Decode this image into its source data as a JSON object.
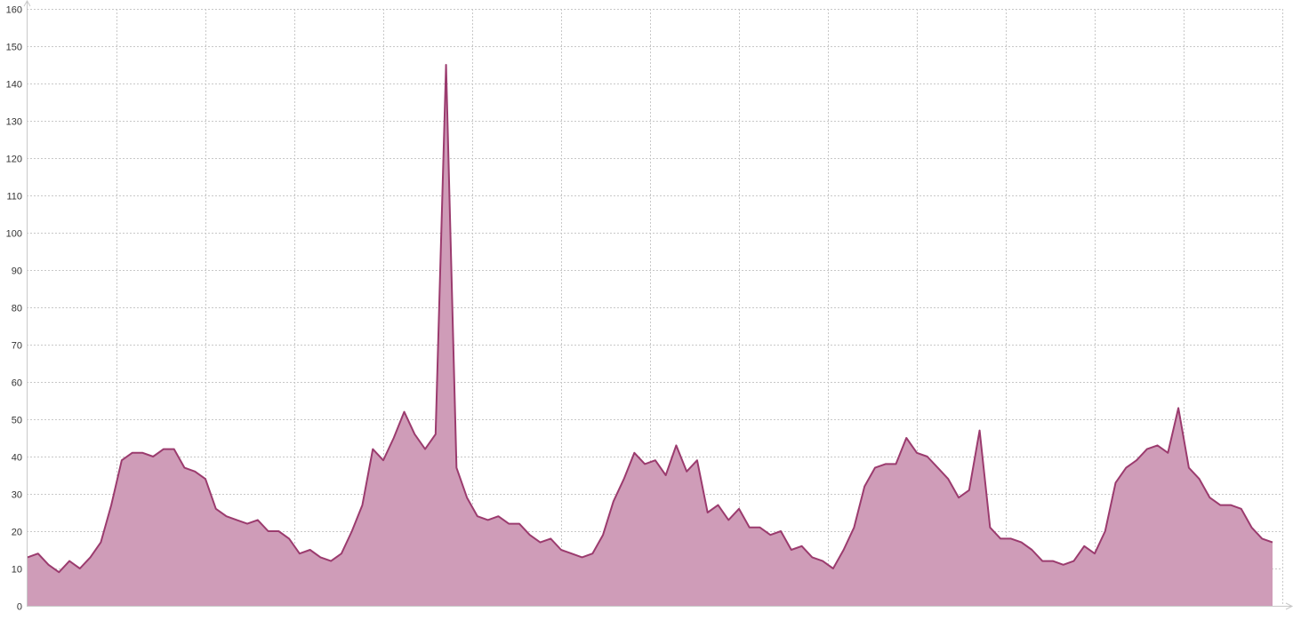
{
  "chart_data": {
    "type": "area",
    "title": "",
    "xlabel": "",
    "ylabel": "",
    "ylim": [
      0,
      160
    ],
    "yticks": [
      0,
      10,
      20,
      30,
      40,
      50,
      60,
      70,
      80,
      90,
      100,
      110,
      120,
      130,
      140,
      150,
      160
    ],
    "ytick_labels": [
      "0",
      "10",
      "20",
      "30",
      "40",
      "50",
      "60",
      "70",
      "80",
      "90",
      "100",
      "110",
      "120",
      "130",
      "140",
      "150",
      "160"
    ],
    "grid": true,
    "legend": "none",
    "colors": {
      "line": "#9b3b6e",
      "fill": "#cf9cb8"
    },
    "x_count": 120,
    "vertical_grid_every": 8.5,
    "values": [
      13,
      14,
      11,
      9,
      12,
      10,
      13,
      17,
      27,
      39,
      41,
      41,
      40,
      42,
      42,
      37,
      36,
      34,
      26,
      24,
      23,
      22,
      23,
      20,
      20,
      18,
      14,
      15,
      13,
      12,
      14,
      20,
      27,
      42,
      39,
      45,
      52,
      46,
      42,
      46,
      145,
      37,
      29,
      24,
      23,
      24,
      22,
      22,
      19,
      17,
      18,
      15,
      14,
      13,
      14,
      19,
      28,
      34,
      41,
      38,
      39,
      35,
      43,
      36,
      39,
      25,
      27,
      23,
      26,
      21,
      21,
      19,
      20,
      15,
      16,
      13,
      12,
      10,
      15,
      21,
      32,
      37,
      38,
      38,
      45,
      41,
      40,
      37,
      34,
      29,
      31,
      47,
      21,
      18,
      18,
      17,
      15,
      12,
      12,
      11,
      12,
      16,
      14,
      20,
      33,
      37,
      39,
      42,
      43,
      41,
      53,
      37,
      34,
      29,
      27,
      27,
      26,
      21,
      18,
      17
    ]
  }
}
